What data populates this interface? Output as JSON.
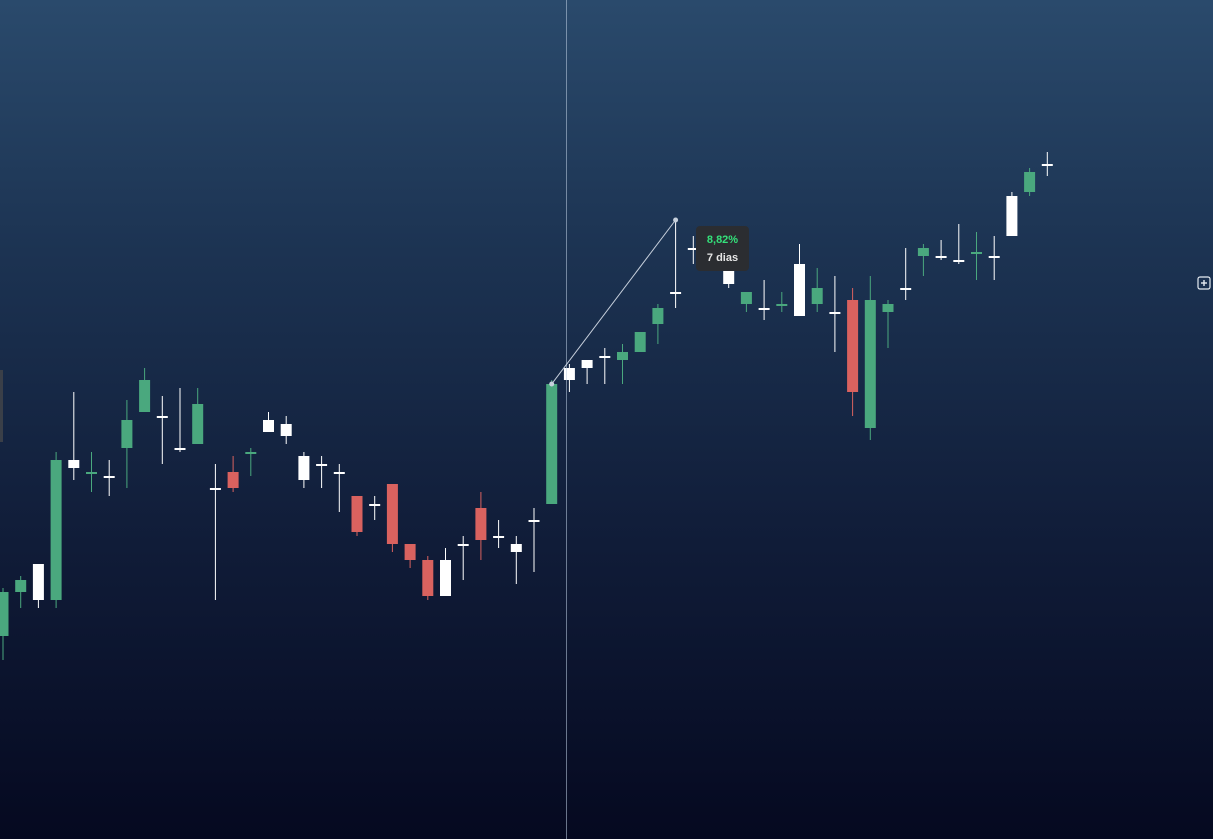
{
  "measure": {
    "percent": "8,82%",
    "period": "7 dias",
    "from_candle": 31,
    "to_candle": 38
  },
  "colors": {
    "up": "#4aa87e",
    "down": "#d9625f",
    "flat": "#ffffff",
    "percent_text": "#34e07a"
  },
  "icons": {
    "expand": "expand-icon"
  },
  "chart_data": {
    "type": "candlestick",
    "title": "",
    "xlabel": "",
    "ylabel": "",
    "grid": false,
    "ylim": [
      0,
      100
    ],
    "candles": [
      {
        "color": "up",
        "open": 33.0,
        "high": 39.0,
        "low": 30.0,
        "close": 38.5
      },
      {
        "color": "up",
        "open": 38.5,
        "high": 40.5,
        "low": 36.5,
        "close": 40.0
      },
      {
        "color": "flat",
        "open": 37.5,
        "high": 42.0,
        "low": 36.5,
        "close": 42.0
      },
      {
        "color": "up",
        "open": 37.5,
        "high": 56.0,
        "low": 36.5,
        "close": 55.0
      },
      {
        "color": "flat",
        "open": 55.0,
        "high": 63.5,
        "low": 52.5,
        "close": 54.0
      },
      {
        "color": "up",
        "open": 53.5,
        "high": 56.0,
        "low": 51.0,
        "close": 53.5
      },
      {
        "color": "flat",
        "open": 53.0,
        "high": 55.0,
        "low": 50.5,
        "close": 53.0
      },
      {
        "color": "up",
        "open": 56.5,
        "high": 62.5,
        "low": 51.5,
        "close": 60.0
      },
      {
        "color": "up",
        "open": 61.0,
        "high": 66.5,
        "low": 61.0,
        "close": 65.0
      },
      {
        "color": "flat",
        "open": 60.5,
        "high": 63.0,
        "low": 54.5,
        "close": 60.5
      },
      {
        "color": "flat",
        "open": 56.5,
        "high": 64.0,
        "low": 56.0,
        "close": 56.5
      },
      {
        "color": "up",
        "open": 57.0,
        "high": 64.0,
        "low": 57.0,
        "close": 62.0
      },
      {
        "color": "flat",
        "open": 51.5,
        "high": 54.5,
        "low": 37.5,
        "close": 51.5
      },
      {
        "color": "down",
        "open": 53.5,
        "high": 55.5,
        "low": 51.0,
        "close": 51.5
      },
      {
        "color": "up",
        "open": 56.0,
        "high": 56.5,
        "low": 53.0,
        "close": 56.0
      },
      {
        "color": "flat",
        "open": 60.0,
        "high": 61.0,
        "low": 58.5,
        "close": 58.5
      },
      {
        "color": "flat",
        "open": 59.5,
        "high": 60.5,
        "low": 57.0,
        "close": 58.0
      },
      {
        "color": "flat",
        "open": 55.5,
        "high": 56.0,
        "low": 51.5,
        "close": 52.5
      },
      {
        "color": "flat",
        "open": 54.5,
        "high": 55.5,
        "low": 51.5,
        "close": 54.5
      },
      {
        "color": "flat",
        "open": 53.5,
        "high": 54.5,
        "low": 48.5,
        "close": 53.5
      },
      {
        "color": "down",
        "open": 50.5,
        "high": 50.5,
        "low": 45.5,
        "close": 46.0
      },
      {
        "color": "flat",
        "open": 49.5,
        "high": 50.5,
        "low": 47.5,
        "close": 49.5
      },
      {
        "color": "down",
        "open": 52.0,
        "high": 52.0,
        "low": 43.5,
        "close": 44.5
      },
      {
        "color": "down",
        "open": 44.5,
        "high": 44.5,
        "low": 41.5,
        "close": 42.5
      },
      {
        "color": "down",
        "open": 42.5,
        "high": 43.0,
        "low": 37.5,
        "close": 38.0
      },
      {
        "color": "flat",
        "open": 38.0,
        "high": 44.0,
        "low": 38.0,
        "close": 42.5
      },
      {
        "color": "flat",
        "open": 44.5,
        "high": 45.5,
        "low": 40.0,
        "close": 44.5
      },
      {
        "color": "down",
        "open": 49.0,
        "high": 51.0,
        "low": 42.5,
        "close": 45.0
      },
      {
        "color": "flat",
        "open": 45.5,
        "high": 47.5,
        "low": 44.0,
        "close": 45.5
      },
      {
        "color": "flat",
        "open": 44.5,
        "high": 45.5,
        "low": 39.5,
        "close": 43.5
      },
      {
        "color": "flat",
        "open": 47.5,
        "high": 49.0,
        "low": 41.0,
        "close": 47.5
      },
      {
        "color": "up",
        "open": 49.5,
        "high": 65.0,
        "low": 49.5,
        "close": 64.5
      },
      {
        "color": "flat",
        "open": 65.0,
        "high": 67.0,
        "low": 63.5,
        "close": 66.5
      },
      {
        "color": "flat",
        "open": 66.5,
        "high": 67.5,
        "low": 64.5,
        "close": 67.5
      },
      {
        "color": "flat",
        "open": 68.0,
        "high": 69.0,
        "low": 64.5,
        "close": 68.0
      },
      {
        "color": "up",
        "open": 67.5,
        "high": 69.5,
        "low": 64.5,
        "close": 68.5
      },
      {
        "color": "up",
        "open": 68.5,
        "high": 71.0,
        "low": 68.5,
        "close": 71.0
      },
      {
        "color": "up",
        "open": 72.0,
        "high": 74.5,
        "low": 69.5,
        "close": 74.0
      },
      {
        "color": "flat",
        "open": 76.0,
        "high": 85.0,
        "low": 74.0,
        "close": 76.0
      },
      {
        "color": "flat",
        "open": 81.5,
        "high": 83.0,
        "low": 79.5,
        "close": 81.5
      },
      {
        "color": "flat",
        "open": 83.0,
        "high": 83.5,
        "low": 79.5,
        "close": 81.5
      },
      {
        "color": "flat",
        "open": 80.5,
        "high": 80.5,
        "low": 76.5,
        "close": 77.0
      },
      {
        "color": "up",
        "open": 74.5,
        "high": 75.0,
        "low": 73.5,
        "close": 76.0
      },
      {
        "color": "flat",
        "open": 74.0,
        "high": 77.5,
        "low": 72.5,
        "close": 74.0
      },
      {
        "color": "up",
        "open": 74.5,
        "high": 76.0,
        "low": 73.5,
        "close": 74.5
      },
      {
        "color": "flat",
        "open": 73.0,
        "high": 82.0,
        "low": 73.0,
        "close": 79.5
      },
      {
        "color": "up",
        "open": 74.5,
        "high": 79.0,
        "low": 73.5,
        "close": 76.5
      },
      {
        "color": "flat",
        "open": 73.5,
        "high": 78.0,
        "low": 68.5,
        "close": 73.5
      },
      {
        "color": "down",
        "open": 75.0,
        "high": 76.5,
        "low": 60.5,
        "close": 63.5
      },
      {
        "color": "up",
        "open": 59.0,
        "high": 78.0,
        "low": 57.5,
        "close": 75.0
      },
      {
        "color": "up",
        "open": 73.5,
        "high": 75.0,
        "low": 69.0,
        "close": 74.5
      },
      {
        "color": "flat",
        "open": 76.5,
        "high": 81.5,
        "low": 75.0,
        "close": 76.5
      },
      {
        "color": "up",
        "open": 80.5,
        "high": 82.0,
        "low": 78.0,
        "close": 81.5
      },
      {
        "color": "flat",
        "open": 80.5,
        "high": 82.5,
        "low": 80.0,
        "close": 80.5
      },
      {
        "color": "flat",
        "open": 80.0,
        "high": 84.5,
        "low": 79.5,
        "close": 80.0
      },
      {
        "color": "up",
        "open": 81.0,
        "high": 83.5,
        "low": 77.5,
        "close": 81.0
      },
      {
        "color": "flat",
        "open": 80.5,
        "high": 83.0,
        "low": 77.5,
        "close": 80.5
      },
      {
        "color": "flat",
        "open": 83.0,
        "high": 88.5,
        "low": 83.0,
        "close": 88.0
      },
      {
        "color": "up",
        "open": 88.5,
        "high": 91.5,
        "low": 88.0,
        "close": 91.0
      },
      {
        "color": "flat",
        "open": 92.0,
        "high": 93.5,
        "low": 90.5,
        "close": 92.0
      }
    ]
  }
}
